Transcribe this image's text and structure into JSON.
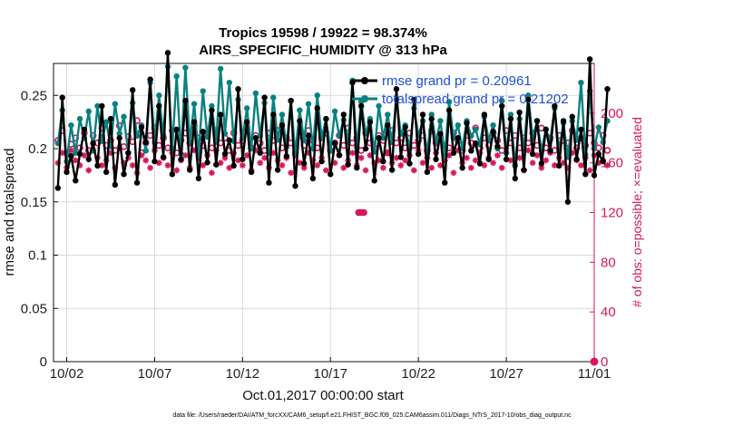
{
  "chart_data": {
    "type": "line",
    "title_line1": "Tropics 19598 / 19922 = 98.374%",
    "title_line2": "AIRS_SPECIFIC_HUMIDITY @ 313 hPa",
    "xlabel": "Oct.01,2017 00:00:00 start",
    "ylabel_left": "rmse and totalspread",
    "ylabel_right": "# of obs: o=possible; ×=evaluated",
    "footnote": "data file: /Users/raeder/DAI/ATM_forcXX/CAM6_setup/f.e21.FHIST_BGC.f09_025.CAM6assim.011/Diags_NTrS_2017-10/obs_diag_output.nc",
    "x_ticks": [
      {
        "day": 2,
        "label": "10/02"
      },
      {
        "day": 7,
        "label": "10/07"
      },
      {
        "day": 12,
        "label": "10/12"
      },
      {
        "day": 17,
        "label": "10/17"
      },
      {
        "day": 22,
        "label": "10/22"
      },
      {
        "day": 27,
        "label": "10/27"
      },
      {
        "day": 32,
        "label": "11/01"
      }
    ],
    "xlim": [
      1.25,
      32.0
    ],
    "ylim_left": [
      0,
      0.28
    ],
    "ylim_right": [
      0,
      240
    ],
    "y_ticks_left": [
      {
        "v": 0,
        "label": "0"
      },
      {
        "v": 0.05,
        "label": "0.05"
      },
      {
        "v": 0.1,
        "label": "0.1"
      },
      {
        "v": 0.15,
        "label": "0.15"
      },
      {
        "v": 0.2,
        "label": "0.2"
      },
      {
        "v": 0.25,
        "label": "0.25"
      }
    ],
    "y_ticks_right": [
      {
        "v": 0,
        "label": "0"
      },
      {
        "v": 40,
        "label": "40"
      },
      {
        "v": 80,
        "label": "80"
      },
      {
        "v": 120,
        "label": "120"
      },
      {
        "v": 160,
        "label": "160"
      },
      {
        "v": 200,
        "label": "200"
      }
    ],
    "legend": [
      {
        "label": "rmse grand pr = 0.20961",
        "color": "#000000"
      },
      {
        "label": "totalspread grand pr = 0.21202",
        "color": "#0b8080"
      }
    ],
    "colors": {
      "rmse": "#000000",
      "spread": "#0b8080",
      "obs": "#d6175e",
      "grid": "#d9d9d9"
    },
    "series": [
      {
        "name": "rmse",
        "values": [
          0.163,
          0.248,
          0.178,
          0.193,
          0.17,
          0.195,
          0.218,
          0.19,
          0.205,
          0.184,
          0.24,
          0.178,
          0.228,
          0.166,
          0.21,
          0.176,
          0.196,
          0.255,
          0.168,
          0.22,
          0.206,
          0.265,
          0.188,
          0.24,
          0.192,
          0.29,
          0.176,
          0.218,
          0.19,
          0.245,
          0.18,
          0.225,
          0.172,
          0.216,
          0.187,
          0.236,
          0.185,
          0.232,
          0.195,
          0.208,
          0.184,
          0.256,
          0.19,
          0.225,
          0.178,
          0.21,
          0.196,
          0.248,
          0.168,
          0.232,
          0.18,
          0.222,
          0.193,
          0.245,
          0.165,
          0.226,
          0.186,
          0.212,
          0.172,
          0.238,
          0.188,
          0.228,
          0.176,
          0.205,
          0.194,
          0.232,
          0.185,
          0.262,
          0.182,
          0.24,
          0.2,
          0.225,
          0.17,
          0.21,
          0.188,
          0.222,
          0.18,
          0.256,
          0.192,
          0.22,
          0.186,
          0.246,
          0.195,
          0.232,
          0.178,
          0.228,
          0.19,
          0.214,
          0.168,
          0.236,
          0.196,
          0.21,
          0.182,
          0.224,
          0.198,
          0.205,
          0.186,
          0.232,
          0.19,
          0.216,
          0.202,
          0.24,
          0.19,
          0.228,
          0.172,
          0.234,
          0.18,
          0.246,
          0.195,
          0.226,
          0.186,
          0.218,
          0.198,
          0.24,
          0.184,
          0.226,
          0.15,
          0.23,
          0.19,
          0.218,
          0.176,
          0.284,
          0.175,
          0.195,
          0.188,
          0.256
        ]
      },
      {
        "name": "totalspread",
        "values": [
          0.205,
          0.236,
          0.188,
          0.222,
          0.196,
          0.228,
          0.21,
          0.235,
          0.198,
          0.24,
          0.207,
          0.225,
          0.202,
          0.242,
          0.214,
          0.23,
          0.196,
          0.243,
          0.212,
          0.222,
          0.198,
          0.262,
          0.206,
          0.25,
          0.212,
          0.277,
          0.2,
          0.268,
          0.195,
          0.276,
          0.206,
          0.242,
          0.194,
          0.254,
          0.211,
          0.24,
          0.206,
          0.275,
          0.214,
          0.262,
          0.207,
          0.246,
          0.21,
          0.238,
          0.2,
          0.252,
          0.212,
          0.243,
          0.196,
          0.248,
          0.208,
          0.232,
          0.202,
          0.245,
          0.195,
          0.236,
          0.208,
          0.242,
          0.2,
          0.25,
          0.21,
          0.228,
          0.198,
          0.235,
          0.212,
          0.227,
          0.206,
          0.264,
          0.201,
          0.244,
          0.214,
          0.228,
          0.197,
          0.24,
          0.21,
          0.232,
          0.206,
          0.246,
          0.214,
          0.222,
          0.2,
          0.238,
          0.212,
          0.226,
          0.196,
          0.232,
          0.206,
          0.226,
          0.194,
          0.244,
          0.21,
          0.222,
          0.2,
          0.226,
          0.212,
          0.218,
          0.204,
          0.23,
          0.208,
          0.222,
          0.2,
          0.245,
          0.196,
          0.232,
          0.184,
          0.228,
          0.2,
          0.25,
          0.21,
          0.226,
          0.198,
          0.218,
          0.208,
          0.238,
          0.198,
          0.224,
          0.192,
          0.226,
          0.208,
          0.262,
          0.194,
          0.254,
          0.2,
          0.22,
          0.206,
          0.226
        ]
      },
      {
        "name": "obs_possible",
        "values": [
          178,
          186,
          168,
          175,
          180,
          172,
          184,
          170,
          182,
          176,
          188,
          174,
          178,
          170,
          190,
          173,
          181,
          177,
          194,
          168,
          176,
          182,
          188,
          174,
          180,
          172,
          186,
          168,
          178,
          184,
          176,
          190,
          180,
          174,
          182,
          172,
          186,
          176,
          180,
          170,
          184,
          174,
          178,
          188,
          172,
          182,
          176,
          170,
          184,
          178,
          186,
          172,
          180,
          176,
          168,
          182,
          174,
          186,
          178,
          172,
          180,
          184,
          170,
          176,
          182,
          174,
          188,
          176,
          180,
          170,
          184,
          176,
          172,
          182,
          178,
          168,
          186,
          176,
          180,
          172,
          184,
          174,
          178,
          182,
          170,
          186,
          176,
          180,
          174,
          172,
          184,
          178,
          170,
          182,
          176,
          188,
          172,
          180,
          174,
          184,
          178,
          170,
          186,
          176,
          182,
          172,
          180,
          176,
          184,
          174,
          188,
          172,
          180,
          170,
          182,
          178,
          176,
          186,
          172,
          180,
          174,
          184,
          176,
          172,
          182,
          170
        ]
      },
      {
        "name": "obs_evaluated",
        "values": [
          160,
          168,
          156,
          170,
          162,
          158,
          166,
          154,
          170,
          164,
          158,
          162,
          168,
          156,
          172,
          160,
          164,
          158,
          152,
          166,
          162,
          156,
          170,
          160,
          164,
          158,
          168,
          154,
          162,
          166,
          156,
          170,
          164,
          158,
          166,
          152,
          170,
          160,
          164,
          156,
          168,
          162,
          158,
          166,
          154,
          170,
          160,
          164,
          156,
          168,
          162,
          158,
          164,
          152,
          166,
          160,
          156,
          168,
          162,
          158,
          164,
          154,
          170,
          160,
          166,
          156,
          162,
          168,
          158,
          164,
          154,
          166,
          160,
          162,
          156,
          168,
          160,
          164,
          158,
          162,
          166,
          154,
          170,
          160,
          164,
          156,
          168,
          158,
          162,
          166,
          152,
          170,
          160,
          164,
          156,
          162,
          168,
          158,
          164,
          160,
          166,
          156,
          168,
          162,
          158,
          164,
          154,
          170,
          160,
          166,
          156,
          162,
          168,
          158,
          164,
          160,
          156,
          168,
          162,
          158,
          164,
          154,
          166,
          160,
          162,
          158
        ]
      },
      {
        "name": "obs_low_cluster_possible",
        "x": [
          18.6,
          18.75,
          18.9
        ],
        "values": [
          120,
          120,
          120
        ]
      },
      {
        "name": "obs_end_point",
        "x": [
          32.0
        ],
        "values": [
          0
        ]
      }
    ]
  }
}
